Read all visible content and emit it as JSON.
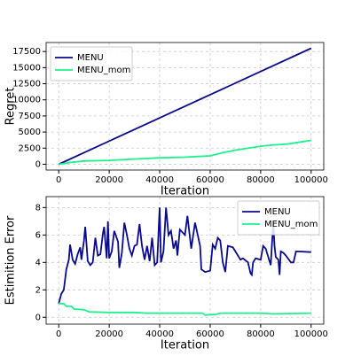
{
  "chart_data": [
    {
      "type": "line",
      "xlabel": "Iteration",
      "ylabel": "Regret",
      "xlim": [
        -5000,
        105000
      ],
      "ylim": [
        -900,
        18900
      ],
      "xticks": [
        0,
        20000,
        40000,
        60000,
        80000,
        100000
      ],
      "yticks": [
        0,
        2500,
        5000,
        7500,
        10000,
        12500,
        15000,
        17500
      ],
      "grid": true,
      "legend": "upper left",
      "series": [
        {
          "name": "MENU",
          "color": "#0a0a8c",
          "x": [
            0,
            100000
          ],
          "values": [
            0,
            18000
          ]
        },
        {
          "name": "MENU_mom",
          "color": "#1ef28a",
          "x": [
            0,
            5000,
            10000,
            20000,
            30000,
            40000,
            50000,
            55000,
            60000,
            65000,
            70000,
            80000,
            85000,
            90000,
            95000,
            100000
          ],
          "values": [
            0,
            300,
            500,
            600,
            800,
            1000,
            1100,
            1200,
            1300,
            1800,
            2200,
            2800,
            3000,
            3100,
            3400,
            3700
          ]
        }
      ]
    },
    {
      "type": "line",
      "xlabel": "Iteration",
      "ylabel": "Estimition Error",
      "xlim": [
        -5000,
        105000
      ],
      "ylim": [
        -0.5,
        8.8
      ],
      "xticks": [
        0,
        20000,
        40000,
        60000,
        80000,
        100000
      ],
      "yticks": [
        0,
        2,
        4,
        6,
        8
      ],
      "grid": true,
      "legend": "upper right",
      "series": [
        {
          "name": "MENU",
          "color": "#0a0a8c",
          "x": [
            0,
            1000,
            2000,
            3000,
            4000,
            4500,
            5500,
            6500,
            7500,
            8500,
            9000,
            10000,
            10500,
            11500,
            12500,
            13500,
            14500,
            15500,
            16500,
            17500,
            18000,
            19000,
            19500,
            20000,
            21000,
            22000,
            23500,
            24000,
            25000,
            26000,
            27000,
            28000,
            29000,
            30000,
            31000,
            32000,
            33000,
            34000,
            35000,
            36000,
            37000,
            38000,
            39000,
            40000,
            40500,
            41500,
            42500,
            43500,
            44500,
            45500,
            46500,
            47000,
            48000,
            50000,
            51000,
            52500,
            54000,
            56000,
            56500,
            58000,
            60000,
            61000,
            62000,
            63000,
            64000,
            65000,
            66000,
            67000,
            69000,
            70000,
            71000,
            72000,
            73000,
            75000,
            76000,
            76500,
            77000,
            78000,
            80000,
            81000,
            82000,
            84000,
            85000,
            85500,
            86000,
            87000,
            87500,
            88000,
            89000,
            90000,
            92000,
            93000,
            94000,
            95000,
            100000
          ],
          "values": [
            1.0,
            1.7,
            2.0,
            3.5,
            4.2,
            5.3,
            4.2,
            3.9,
            4.6,
            5.1,
            4.2,
            5.6,
            6.6,
            4.1,
            3.8,
            4.0,
            5.8,
            4.5,
            4.6,
            6.1,
            6.6,
            4.3,
            7.0,
            4.3,
            4.8,
            6.3,
            5.5,
            3.6,
            4.7,
            6.9,
            6.0,
            5.0,
            4.5,
            5.2,
            5.3,
            6.8,
            5.2,
            4.2,
            5.2,
            4.1,
            5.8,
            3.8,
            4.0,
            8.0,
            4.0,
            4.8,
            8.0,
            6.0,
            6.3,
            5.0,
            5.6,
            4.5,
            6.4,
            6.0,
            7.4,
            5.0,
            6.9,
            5.2,
            3.5,
            3.3,
            3.4,
            5.3,
            5.0,
            5.8,
            5.6,
            4.0,
            3.3,
            5.2,
            5.1,
            4.8,
            4.5,
            4.2,
            4.3,
            4.0,
            3.2,
            3.1,
            4.0,
            4.3,
            4.2,
            5.2,
            5.0,
            3.8,
            6.9,
            5.2,
            4.4,
            4.2,
            3.1,
            4.8,
            4.7,
            4.5,
            4.0,
            4.0,
            4.8,
            4.8,
            4.75
          ]
        },
        {
          "name": "MENU_mom",
          "color": "#1ef28a",
          "x": [
            0,
            2000,
            3000,
            5000,
            6000,
            10000,
            12000,
            20000,
            30000,
            35000,
            40000,
            50000,
            57000,
            58000,
            60000,
            62000,
            64000,
            80000,
            85000,
            100000
          ],
          "values": [
            1.0,
            1.0,
            0.8,
            0.8,
            0.6,
            0.55,
            0.4,
            0.35,
            0.35,
            0.3,
            0.3,
            0.3,
            0.3,
            0.15,
            0.2,
            0.2,
            0.3,
            0.3,
            0.25,
            0.3
          ]
        }
      ]
    }
  ]
}
